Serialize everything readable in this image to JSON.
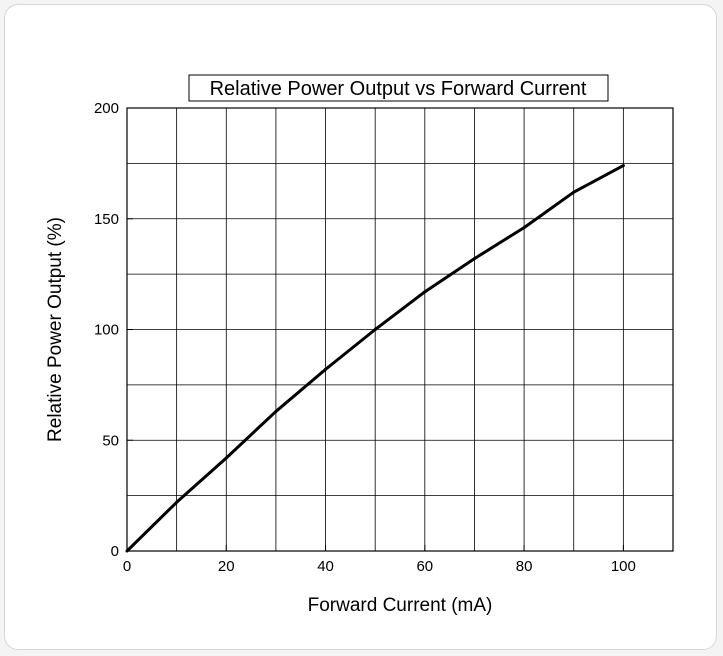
{
  "chart_data": {
    "type": "line",
    "title": "Relative Power Output vs Forward Current",
    "xlabel": "Forward Current (mA)",
    "ylabel": "Relative Power Output (%)",
    "xlim": [
      0,
      110
    ],
    "ylim": [
      0,
      200
    ],
    "xticks": [
      "0",
      "20",
      "40",
      "60",
      "80",
      "100"
    ],
    "yticks": [
      "0",
      "50",
      "100",
      "150",
      "200"
    ],
    "grid": true,
    "series": [
      {
        "x": [
          0,
          10,
          20,
          30,
          40,
          50,
          60,
          70,
          80,
          90,
          100
        ],
        "y": [
          0,
          22,
          42,
          63,
          82,
          100,
          117,
          132,
          146,
          162,
          174
        ]
      }
    ],
    "line_color": "#000000"
  }
}
